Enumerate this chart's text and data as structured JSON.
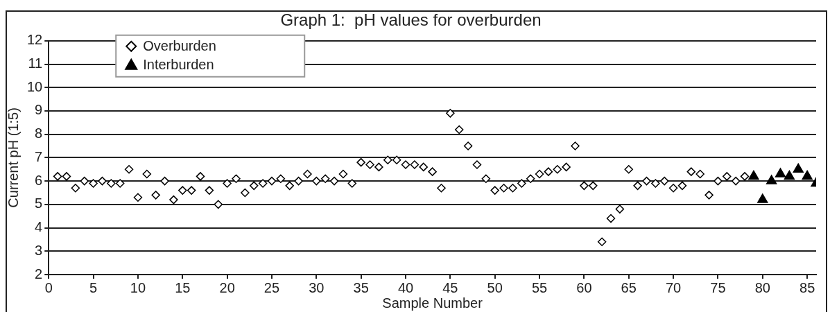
{
  "chart_data": {
    "type": "scatter",
    "title": "Graph 1:  pH values for overburden",
    "xlabel": "Sample Number",
    "ylabel": "Current pH (1:5)",
    "xlim": [
      0,
      86
    ],
    "xticks": [
      0,
      5,
      10,
      15,
      20,
      25,
      30,
      35,
      40,
      45,
      50,
      55,
      60,
      65,
      70,
      75,
      80,
      85
    ],
    "ylim": [
      2,
      12
    ],
    "yticks": [
      2,
      3,
      4,
      5,
      6,
      7,
      8,
      9,
      10,
      11,
      12
    ],
    "grid": "y",
    "legend": "top left",
    "series": [
      {
        "name": "Overburden",
        "color": "#000000",
        "marker": "diamond",
        "x": [
          1,
          2,
          3,
          4,
          5,
          6,
          7,
          8,
          9,
          10,
          11,
          12,
          13,
          14,
          15,
          16,
          17,
          18,
          19,
          20,
          21,
          22,
          23,
          24,
          25,
          26,
          27,
          28,
          29,
          30,
          31,
          32,
          33,
          34,
          35,
          36,
          37,
          38,
          39,
          40,
          41,
          42,
          43,
          44,
          45,
          46,
          47,
          48,
          49,
          50,
          51,
          52,
          53,
          54,
          55,
          56,
          57,
          58,
          59,
          60,
          61,
          62,
          63,
          64,
          65,
          66,
          67,
          68,
          69,
          70,
          71,
          72,
          73,
          74,
          75,
          76,
          77,
          78
        ],
        "values": [
          6.2,
          6.2,
          5.7,
          6.0,
          5.9,
          6.0,
          5.9,
          5.9,
          6.5,
          5.3,
          6.3,
          5.4,
          6.0,
          5.2,
          5.6,
          5.6,
          6.2,
          5.6,
          5.0,
          5.9,
          6.1,
          5.5,
          5.8,
          5.9,
          6.0,
          6.1,
          5.8,
          6.0,
          6.3,
          6.0,
          6.1,
          6.0,
          6.3,
          5.9,
          6.8,
          6.7,
          6.6,
          6.9,
          6.9,
          6.7,
          6.7,
          6.6,
          6.4,
          5.7,
          8.9,
          8.2,
          7.5,
          6.7,
          6.1,
          5.6,
          5.7,
          5.7,
          5.9,
          6.1,
          6.3,
          6.4,
          6.5,
          6.6,
          7.5,
          5.8,
          5.8,
          3.4,
          4.4,
          4.8,
          6.5,
          5.8,
          6.0,
          5.9,
          6.0,
          5.7,
          5.8,
          6.4,
          6.3,
          5.4,
          6.0,
          6.2,
          6.0,
          6.2
        ]
      },
      {
        "name": "Interburden",
        "color": "#000000",
        "marker": "triangle",
        "x": [
          79,
          80,
          81,
          82,
          83,
          84,
          85,
          86
        ],
        "values": [
          6.2,
          5.2,
          6.0,
          6.3,
          6.2,
          6.5,
          6.2,
          5.9
        ]
      }
    ]
  }
}
